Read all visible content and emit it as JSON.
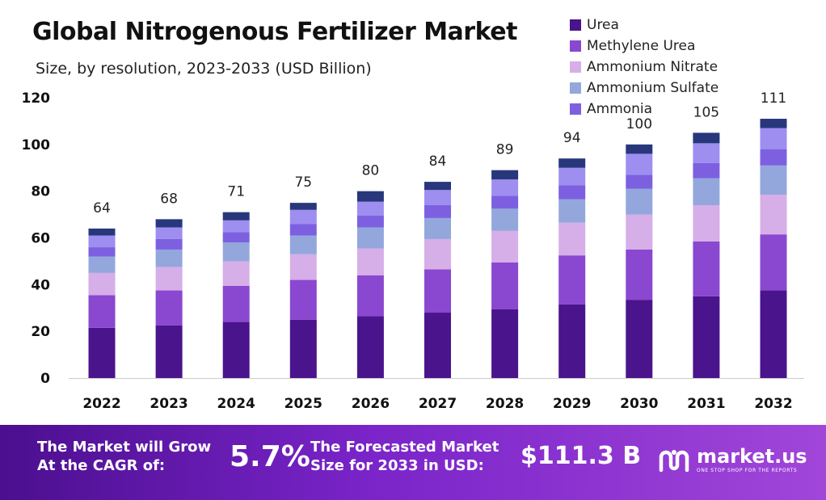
{
  "title": "Global Nitrogenous Fertilizer Market",
  "subtitle": "Size, by resolution, 2023-2033 (USD Billion)",
  "chart_data": {
    "type": "bar",
    "stacked": true,
    "categories": [
      "2022",
      "2023",
      "2024",
      "2025",
      "2026",
      "2027",
      "2028",
      "2029",
      "2030",
      "2031",
      "2032"
    ],
    "series": [
      {
        "name": "Urea",
        "color": "#4a148c",
        "values": [
          21.5,
          22.5,
          24,
          25,
          26.5,
          28,
          29.5,
          31.5,
          33.5,
          35,
          37.5
        ]
      },
      {
        "name": "Methylene Urea",
        "color": "#8a47cf",
        "values": [
          14,
          15,
          15.5,
          17,
          17.5,
          18.5,
          20,
          21,
          21.5,
          23.5,
          24
        ]
      },
      {
        "name": "Ammonium Nitrate",
        "color": "#d6aee8",
        "values": [
          9.5,
          10,
          10.5,
          11,
          11.5,
          13,
          13.5,
          14,
          15,
          15.5,
          17
        ]
      },
      {
        "name": "Ammonium Sulfate",
        "color": "#93a7dc",
        "values": [
          7,
          7.5,
          8,
          8,
          9,
          9,
          9.5,
          10,
          11,
          11.5,
          12.5
        ]
      },
      {
        "name": "Ammonia",
        "color": "#7d60e0",
        "values": [
          4,
          4.5,
          4.5,
          5,
          5,
          5.5,
          5.5,
          6,
          6,
          6.5,
          7
        ]
      },
      {
        "color": "#9e8ef0",
        "values": [
          5,
          5,
          5,
          6,
          6,
          6.5,
          7,
          7.5,
          9,
          8.5,
          9
        ]
      },
      {
        "color": "#28377c",
        "values": [
          3,
          3.5,
          3.5,
          3,
          4.5,
          3.5,
          4,
          4,
          4,
          4.5,
          4
        ]
      }
    ],
    "totals": [
      "64",
      "68",
      "71",
      "75",
      "80",
      "84",
      "89",
      "94",
      "100",
      "105",
      "111"
    ],
    "ylim": [
      0,
      120
    ],
    "yticks": [
      "0",
      "20",
      "40",
      "60",
      "80",
      "100",
      "120"
    ],
    "legend": "top-right",
    "grid": false
  },
  "banner": {
    "grow_line1": "The Market will Grow",
    "grow_line2": "At the CAGR of:",
    "cagr": "5.7%",
    "forecast_line1": "The Forecasted Market",
    "forecast_line2": "Size for 2033 in USD:",
    "forecast_value": "$111.3 B",
    "brand_name": "market.us",
    "brand_tagline": "ONE STOP SHOP FOR THE REPORTS",
    "brand_icon": "market-us-logo-icon"
  }
}
